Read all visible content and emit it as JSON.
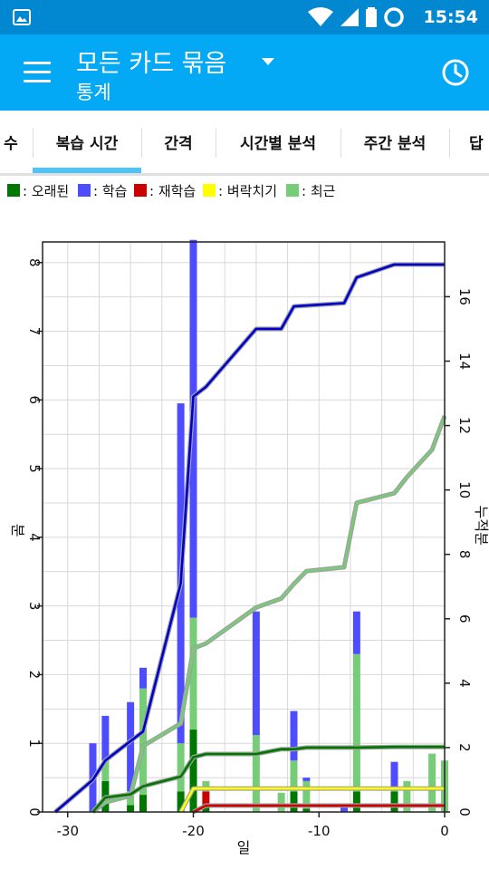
{
  "status_bar": {
    "time": "15:54"
  },
  "app_bar": {
    "title": "모든 카드 묶음",
    "subtitle": "통계"
  },
  "tabs": [
    {
      "label": "수"
    },
    {
      "label": "복습 시간"
    },
    {
      "label": "간격"
    },
    {
      "label": "시간별 분석"
    },
    {
      "label": "주간 분석"
    },
    {
      "label": "답"
    }
  ],
  "legend": [
    {
      "label": ": 오래된",
      "color": "#007700"
    },
    {
      "label": ": 학습",
      "color": "#4d4dff"
    },
    {
      "label": ": 재학습",
      "color": "#cc0000"
    },
    {
      "label": ": 벼락치기",
      "color": "#ffff00"
    },
    {
      "label": ": 최근",
      "color": "#77cc77"
    }
  ],
  "chart_data": {
    "type": "bar",
    "xlabel": "일",
    "ylabel": "분",
    "y2label": "누적분",
    "xlim": [
      -32,
      0
    ],
    "ylim": [
      0,
      8.3
    ],
    "y2lim": [
      0,
      17.7
    ],
    "x_ticks": [
      -30,
      -20,
      -10,
      0
    ],
    "y_ticks": [
      0,
      1,
      2,
      3,
      4,
      5,
      6,
      7,
      8
    ],
    "y2_ticks": [
      0,
      2,
      4,
      6,
      8,
      10,
      12,
      14,
      16
    ],
    "grid": true,
    "bars": [
      {
        "x": -28,
        "old": 0,
        "learn": 1.0,
        "relearn": 0,
        "cram": 0,
        "young": 0
      },
      {
        "x": -27,
        "old": 0.45,
        "learn": 0.65,
        "relearn": 0,
        "cram": 0,
        "young": 0.3
      },
      {
        "x": -25,
        "old": 0.1,
        "learn": 1.3,
        "relearn": 0,
        "cram": 0,
        "young": 0.2
      },
      {
        "x": -24,
        "old": 0.25,
        "learn": 0.3,
        "relearn": 0,
        "cram": 0,
        "young": 1.55
      },
      {
        "x": -21,
        "old": 0.3,
        "learn": 4.95,
        "relearn": 0,
        "cram": 0,
        "young": 0.7
      },
      {
        "x": -20,
        "old": 1.2,
        "learn": 5.5,
        "relearn": 0,
        "cram": 0,
        "young": 1.63
      },
      {
        "x": -19,
        "old": 0.1,
        "learn": 0,
        "relearn": 0.2,
        "cram": 0,
        "young": 0.15
      },
      {
        "x": -15,
        "old": 0,
        "learn": 1.8,
        "relearn": 0,
        "cram": 0,
        "young": 1.12
      },
      {
        "x": -13,
        "old": 0,
        "learn": 0,
        "relearn": 0,
        "cram": 0,
        "young": 0.28
      },
      {
        "x": -12,
        "old": 0.3,
        "learn": 0.72,
        "relearn": 0,
        "cram": 0,
        "young": 0.45
      },
      {
        "x": -11,
        "old": 0.05,
        "learn": 0.05,
        "relearn": 0,
        "cram": 0,
        "young": 0.4
      },
      {
        "x": -8,
        "old": 0,
        "learn": 0.12,
        "relearn": 0,
        "cram": 0,
        "young": 0
      },
      {
        "x": -7,
        "old": 0.3,
        "learn": 0.62,
        "relearn": 0,
        "cram": 0,
        "young": 2.0
      },
      {
        "x": -4,
        "old": 0.3,
        "learn": 0.38,
        "relearn": 0,
        "cram": 0,
        "young": 0.05
      },
      {
        "x": -3,
        "old": 0,
        "learn": 0,
        "relearn": 0,
        "cram": 0,
        "young": 0.45
      },
      {
        "x": -1,
        "old": 0,
        "learn": 0,
        "relearn": 0,
        "cram": 0,
        "young": 0.85
      },
      {
        "x": 0,
        "old": 0,
        "learn": 0,
        "relearn": 0,
        "cram": 0,
        "young": 0.75
      }
    ],
    "cumulative": [
      {
        "name": "학습",
        "color": "#0000cc",
        "x": [
          -31,
          -28,
          -27,
          -25,
          -24,
          -21,
          -20,
          -19,
          -15,
          -13,
          -12,
          -8,
          -7,
          -4,
          0
        ],
        "y": [
          0,
          1.0,
          1.6,
          2.2,
          2.5,
          7.1,
          12.9,
          13.2,
          15.0,
          15.0,
          15.7,
          15.8,
          16.6,
          17.0,
          17.0
        ]
      },
      {
        "name": "최근",
        "color": "#77cc77",
        "x": [
          -28,
          -27,
          -25,
          -24,
          -21,
          -20,
          -19,
          -15,
          -13,
          -12,
          -11,
          -8,
          -7,
          -4,
          -3,
          -1,
          0
        ],
        "y": [
          0,
          0.3,
          0.5,
          2.05,
          2.75,
          5.08,
          5.23,
          6.35,
          6.63,
          7.08,
          7.48,
          7.6,
          9.6,
          9.9,
          10.4,
          11.25,
          12.3
        ]
      },
      {
        "name": "오래된",
        "color": "#007700",
        "x": [
          -28,
          -27,
          -25,
          -24,
          -21,
          -20,
          -19,
          -15,
          -13,
          -12,
          -11,
          -8,
          -7,
          -4,
          0
        ],
        "y": [
          0,
          0.45,
          0.55,
          0.8,
          1.1,
          1.7,
          1.8,
          1.8,
          1.95,
          1.95,
          2.0,
          2.0,
          2.0,
          2.02,
          2.02
        ]
      },
      {
        "name": "벼락치기",
        "color": "#ffff00",
        "x": [
          -21,
          -20,
          -19,
          0
        ],
        "y": [
          0,
          0.73,
          0.73,
          0.73
        ]
      },
      {
        "name": "재학습",
        "color": "#cc0000",
        "x": [
          -20,
          -19,
          0
        ],
        "y": [
          0,
          0.2,
          0.2
        ]
      }
    ]
  }
}
